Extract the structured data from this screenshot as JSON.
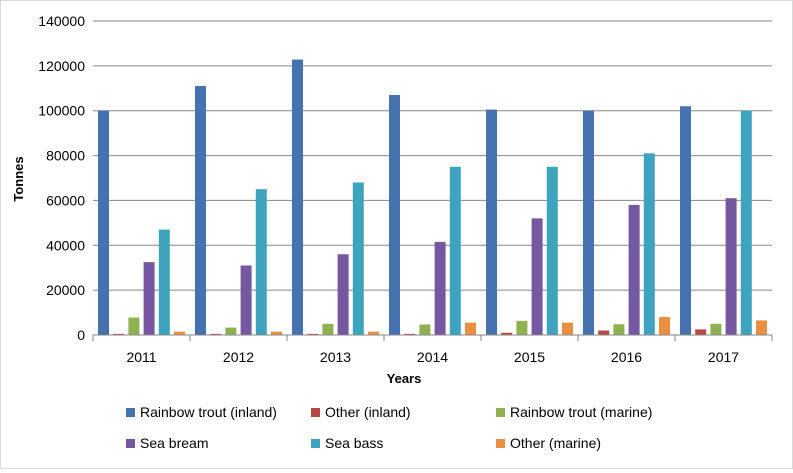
{
  "chart_data": {
    "type": "bar",
    "title": "",
    "xlabel": "Years",
    "ylabel": "Tonnes",
    "ylim": [
      0,
      140000
    ],
    "yticks": [
      0,
      20000,
      40000,
      60000,
      80000,
      100000,
      120000,
      140000
    ],
    "grid": true,
    "legend": "bottom",
    "categories": [
      "2011",
      "2012",
      "2013",
      "2014",
      "2015",
      "2016",
      "2017"
    ],
    "series": [
      {
        "name": "Rainbow trout (inland)",
        "color": "#4672b0",
        "values": [
          100000,
          111000,
          122800,
          107000,
          100500,
          100000,
          102000
        ]
      },
      {
        "name": "Other (inland)",
        "color": "#b54a45",
        "values": [
          500,
          500,
          500,
          500,
          1000,
          2000,
          2500
        ]
      },
      {
        "name": "Rainbow trout (marine)",
        "color": "#8fb152",
        "values": [
          7800,
          3300,
          5000,
          4700,
          6300,
          4800,
          5000
        ]
      },
      {
        "name": "Sea bream",
        "color": "#7558a0",
        "values": [
          32500,
          31000,
          36000,
          41500,
          52000,
          58000,
          61000
        ]
      },
      {
        "name": "Sea bass",
        "color": "#3ea4be",
        "values": [
          47000,
          65000,
          68000,
          75000,
          75000,
          81000,
          100000
        ]
      },
      {
        "name": "Other (marine)",
        "color": "#e98f42",
        "values": [
          1500,
          1500,
          1500,
          5500,
          5500,
          8000,
          6500
        ]
      }
    ]
  }
}
